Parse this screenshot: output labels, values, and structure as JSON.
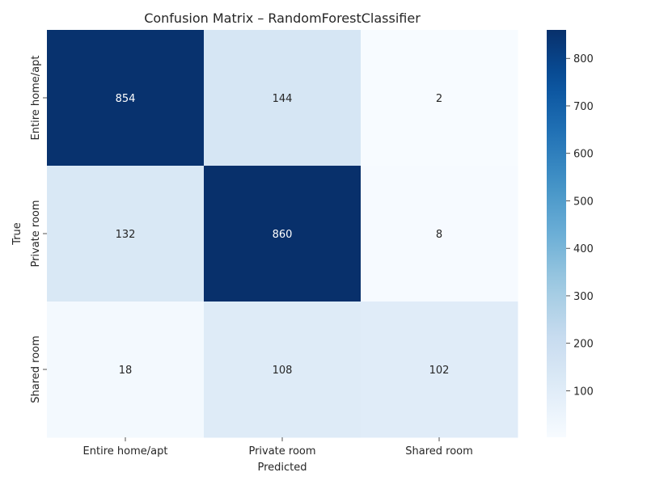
{
  "chart_data": {
    "type": "heatmap",
    "title": "Confusion Matrix – RandomForestClassifier",
    "xlabel": "Predicted",
    "ylabel": "True",
    "x_categories": [
      "Entire home/apt",
      "Private room",
      "Shared room"
    ],
    "y_categories": [
      "Entire home/apt",
      "Private room",
      "Shared room"
    ],
    "values": [
      [
        854,
        144,
        2
      ],
      [
        132,
        860,
        8
      ],
      [
        18,
        108,
        102
      ]
    ],
    "colormap": "Blues",
    "color_range": [
      2,
      860
    ],
    "colorbar_ticks": [
      100,
      200,
      300,
      400,
      500,
      600,
      700,
      800
    ],
    "grid": false
  }
}
